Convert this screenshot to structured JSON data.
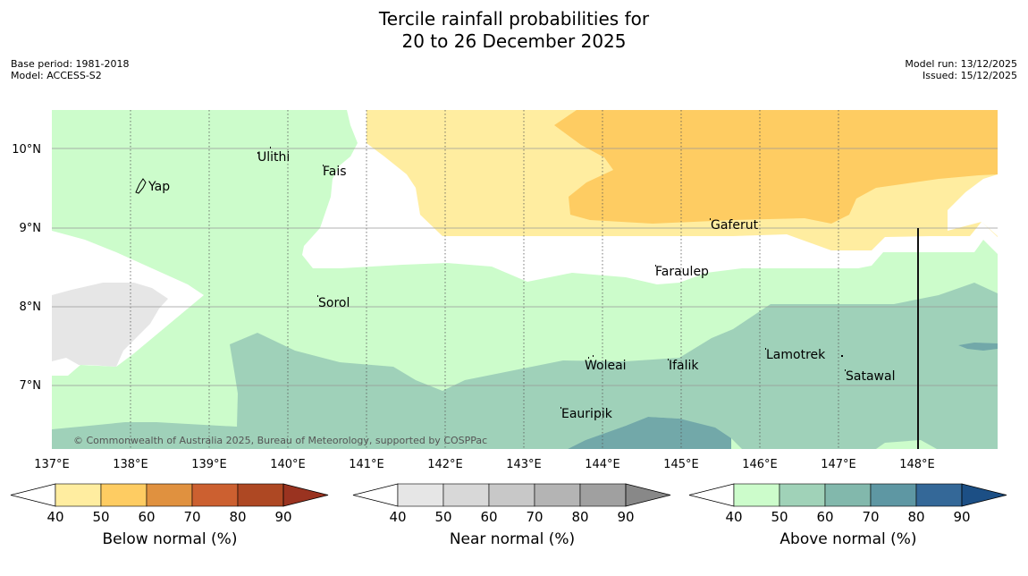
{
  "title": {
    "line1": "Tercile rainfall probabilities for",
    "line2": "20 to 26 December 2025"
  },
  "meta_left": {
    "base_period": "Base period: 1981-2018",
    "model": "Model: ACCESS-S2"
  },
  "meta_right": {
    "model_run": "Model run: 13/12/2025",
    "issued": "Issued: 15/12/2025"
  },
  "map": {
    "lon_labels": [
      "137°E",
      "138°E",
      "139°E",
      "140°E",
      "141°E",
      "142°E",
      "143°E",
      "144°E",
      "145°E",
      "146°E",
      "147°E",
      "148°E"
    ],
    "lat_labels": [
      "10°N",
      "9°N",
      "8°N",
      "7°N"
    ],
    "copyright": "© Commonwealth of Australia 2025, Bureau of Meteorology, supported by COSPPac",
    "places": [
      "Yap",
      "Ulithi",
      "Fais",
      "Gaferut",
      "Faraulep",
      "Sorol",
      "Woleai",
      "Ifalik",
      "Lamotrek",
      "Satawal",
      "Eauripik"
    ]
  },
  "colorbars": [
    {
      "label": "Below normal (%)",
      "ticks": [
        "40",
        "50",
        "60",
        "70",
        "80",
        "90"
      ],
      "colors": [
        "#ffeda0",
        "#fecc62",
        "#e0913f",
        "#cc6030",
        "#ae4823",
        "#9a3320"
      ]
    },
    {
      "label": "Near normal (%)",
      "ticks": [
        "40",
        "50",
        "60",
        "70",
        "80",
        "90"
      ],
      "colors": [
        "#e6e6e6",
        "#d8d8d8",
        "#c8c8c8",
        "#b4b4b4",
        "#a0a0a0",
        "#888888"
      ]
    },
    {
      "label": "Above normal (%)",
      "ticks": [
        "40",
        "50",
        "60",
        "70",
        "80",
        "90"
      ],
      "colors": [
        "#ccfccb",
        "#a0d2b8",
        "#82b8ac",
        "#5e97a3",
        "#346898",
        "#1c4f85"
      ]
    }
  ],
  "region_colors": {
    "above_40": "#ccfccb",
    "above_50": "#9fd1b9",
    "above_60": "#72a8a9",
    "below_40": "#ffeda0",
    "below_50": "#fecc62",
    "near_40": "#e6e6e6"
  }
}
